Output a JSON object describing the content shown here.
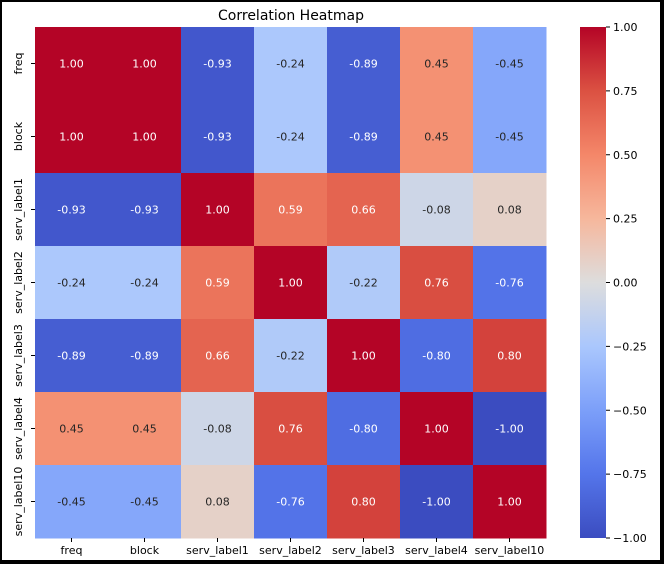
{
  "chart_data": {
    "type": "heatmap",
    "title": "Correlation Heatmap",
    "xlabel": "",
    "ylabel": "",
    "labels": [
      "freq",
      "block",
      "serv_label1",
      "serv_label2",
      "serv_label3",
      "serv_label4",
      "serv_label10"
    ],
    "matrix": [
      [
        1.0,
        1.0,
        -0.93,
        -0.24,
        -0.89,
        0.45,
        -0.45
      ],
      [
        1.0,
        1.0,
        -0.93,
        -0.24,
        -0.89,
        0.45,
        -0.45
      ],
      [
        -0.93,
        -0.93,
        1.0,
        0.59,
        0.66,
        -0.08,
        0.08
      ],
      [
        -0.24,
        -0.24,
        0.59,
        1.0,
        -0.22,
        0.76,
        -0.76
      ],
      [
        -0.89,
        -0.89,
        0.66,
        -0.22,
        1.0,
        -0.8,
        0.8
      ],
      [
        0.45,
        0.45,
        -0.08,
        0.76,
        -0.8,
        1.0,
        -1.0
      ],
      [
        -0.45,
        -0.45,
        0.08,
        -0.76,
        0.8,
        -1.0,
        1.0
      ]
    ],
    "colormap": "coolwarm",
    "vmin": -1.0,
    "vmax": 1.0,
    "colorbar_ticks": [
      1.0,
      0.75,
      0.5,
      0.25,
      0.0,
      -0.25,
      -0.5,
      -0.75,
      -1.0
    ],
    "colorbar_tick_labels": [
      "1.00",
      "0.75",
      "0.50",
      "0.25",
      "0.00",
      "−0.25",
      "−0.50",
      "−0.75",
      "−1.00"
    ]
  }
}
